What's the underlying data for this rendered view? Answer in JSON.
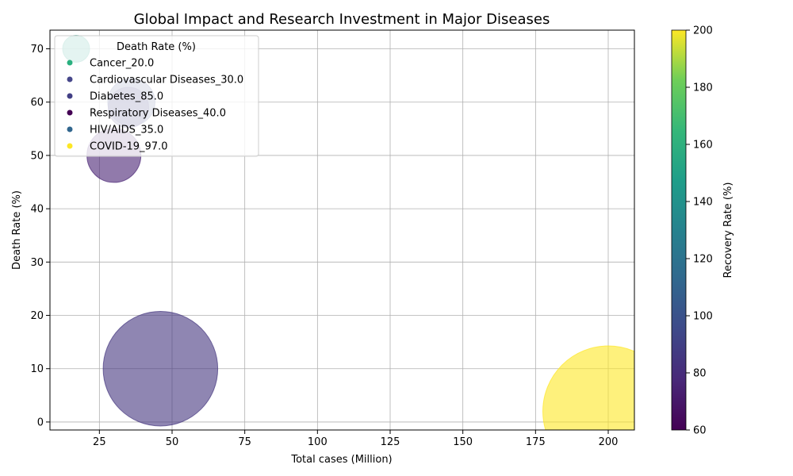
{
  "chart_data": {
    "type": "scatter",
    "title": "Global Impact and Research Investment in Major Diseases",
    "xlabel": "Total cases (Million)",
    "ylabel": "Death Rate (%)",
    "xlim": [
      8,
      209
    ],
    "ylim": [
      -1.5,
      73.5
    ],
    "xticks": [
      25,
      50,
      75,
      100,
      125,
      150,
      175,
      200
    ],
    "yticks": [
      0,
      10,
      20,
      30,
      40,
      50,
      60,
      70
    ],
    "grid": true,
    "legend": {
      "title": "Death Rate (%)",
      "placement": "upper-left"
    },
    "colorbar": {
      "label": "Recovery Rate (%)",
      "range": [
        60,
        200
      ],
      "ticks": [
        60,
        80,
        100,
        120,
        140,
        160,
        180,
        200
      ],
      "colormap": "viridis"
    },
    "points": [
      {
        "label": "Cancer_20.0",
        "x": 17,
        "y": 70,
        "color_value": 150,
        "size_value": 20
      },
      {
        "label": "Cardiovascular Diseases_30.0",
        "x": 46,
        "y": 10,
        "color_value": 85,
        "size_value": 85
      },
      {
        "label": "Diabetes_85.0",
        "x": 30,
        "y": 50,
        "color_value": 75,
        "size_value": 40
      },
      {
        "label": "Respiratory Diseases_40.0",
        "x": 36,
        "y": 60,
        "color_value": 97,
        "size_value": 35
      },
      {
        "label": "HIV/AIDS_35.0",
        "x": 35,
        "y": 59,
        "color_value": 88,
        "size_value": 30
      },
      {
        "label": "COVID-19_97.0",
        "x": 200,
        "y": 2,
        "color_value": 200,
        "size_value": 97
      }
    ],
    "legend_entries": [
      {
        "label": "Cancer_20.0",
        "color": "#2ab07f"
      },
      {
        "label": "Cardiovascular Diseases_30.0",
        "color": "#46478a"
      },
      {
        "label": "Diabetes_85.0",
        "color": "#423f85"
      },
      {
        "label": "Respiratory Diseases_40.0",
        "color": "#440154"
      },
      {
        "label": "HIV/AIDS_35.0",
        "color": "#31668e"
      },
      {
        "label": "COVID-19_97.0",
        "color": "#fde725"
      }
    ]
  }
}
